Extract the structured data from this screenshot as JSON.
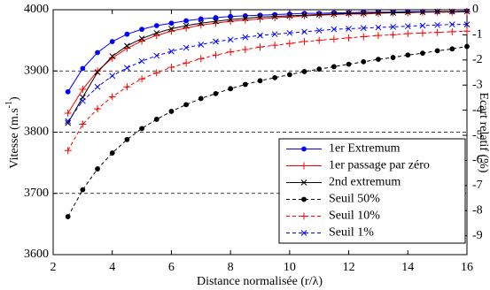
{
  "chart_data": {
    "type": "line",
    "xlabel": "Distance normalisée (r/λ)",
    "ylabel": "Vitesse (m.s",
    "ylabel_sup": "-1",
    "ylabel_end": ")",
    "y2label": "Ecart relatif (%)",
    "x": [
      2.5,
      3,
      3.5,
      4,
      4.5,
      5,
      5.5,
      6,
      6.5,
      7,
      7.5,
      8,
      8.5,
      9,
      9.5,
      10,
      10.5,
      11,
      11.5,
      12,
      12.5,
      13,
      13.5,
      14,
      14.5,
      15,
      15.5,
      16
    ],
    "xlim": [
      2,
      16
    ],
    "xticks": [
      2,
      4,
      6,
      8,
      10,
      12,
      14,
      16
    ],
    "ylim": [
      3600,
      4000
    ],
    "yticks": [
      3600,
      3700,
      3800,
      3900,
      4000
    ],
    "y2lim": [
      -9.75,
      0
    ],
    "y2ticks": [
      0,
      -1,
      -2,
      -3,
      -4,
      -5,
      -6,
      -7,
      -8,
      -9
    ],
    "grid": true,
    "legend": "lower right",
    "series": [
      {
        "name": "1er Extremum",
        "color": "#0000ff",
        "marker": "o",
        "linestyle": "solid",
        "values": [
          3866,
          3904,
          3930,
          3948,
          3960,
          3968,
          3974,
          3978,
          3982,
          3985,
          3987,
          3989,
          3990,
          3991,
          3992,
          3993,
          3994,
          3994,
          3995,
          3995,
          3996,
          3996,
          3996,
          3997,
          3997,
          3997,
          3997,
          3998
        ]
      },
      {
        "name": "1er passage par zéro",
        "color": "#ff0000",
        "marker": "+",
        "linestyle": "solid",
        "values": [
          3831,
          3870,
          3900,
          3921,
          3937,
          3949,
          3958,
          3965,
          3970,
          3975,
          3978,
          3981,
          3983,
          3985,
          3987,
          3988,
          3990,
          3991,
          3992,
          3993,
          3993,
          3994,
          3995,
          3995,
          3996,
          3996,
          3996,
          3997
        ]
      },
      {
        "name": "2nd extremum",
        "color": "#000000",
        "marker": "x",
        "linestyle": "solid",
        "values": [
          3815,
          3857,
          3898,
          3924,
          3941,
          3953,
          3962,
          3969,
          3974,
          3978,
          3981,
          3984,
          3986,
          3988,
          3989,
          3990,
          3991,
          3992,
          3993,
          3994,
          3994,
          3995,
          3995,
          3996,
          3996,
          3997,
          3997,
          3997
        ]
      },
      {
        "name": "Seuil 50%",
        "color": "#000000",
        "marker": "o",
        "linestyle": "dashed",
        "values": [
          3662,
          3706,
          3740,
          3766,
          3788,
          3806,
          3821,
          3834,
          3845,
          3855,
          3863,
          3871,
          3878,
          3884,
          3889,
          3894,
          3899,
          3903,
          3907,
          3911,
          3915,
          3919,
          3922,
          3926,
          3929,
          3933,
          3936,
          3940
        ]
      },
      {
        "name": "Seuil 10%",
        "color": "#ff0000",
        "marker": "+",
        "linestyle": "dashed",
        "values": [
          3770,
          3813,
          3838,
          3858,
          3874,
          3887,
          3897,
          3906,
          3913,
          3920,
          3926,
          3931,
          3935,
          3939,
          3942,
          3945,
          3948,
          3950,
          3952,
          3954,
          3956,
          3958,
          3959,
          3961,
          3962,
          3963,
          3964,
          3965
        ]
      },
      {
        "name": "Seuil 1%",
        "color": "#0000ff",
        "marker": "x",
        "linestyle": "dashed",
        "values": [
          3818,
          3851,
          3874,
          3892,
          3905,
          3916,
          3925,
          3932,
          3938,
          3943,
          3948,
          3951,
          3955,
          3958,
          3960,
          3962,
          3964,
          3966,
          3968,
          3969,
          3970,
          3971,
          3972,
          3973,
          3974,
          3975,
          3976,
          3976
        ]
      }
    ]
  }
}
